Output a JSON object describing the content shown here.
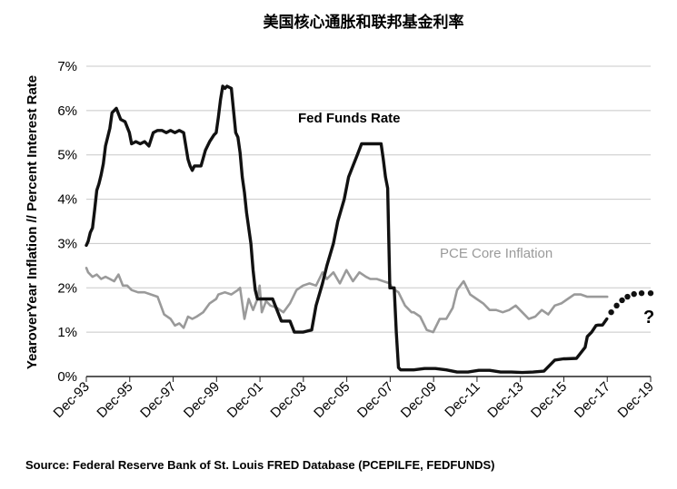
{
  "chart_data": {
    "type": "line",
    "title": "美国核心通胀和联邦基金利率",
    "ylabel": "YearoverYear Inflation // Percent Interest Rate",
    "xlabel": "",
    "ylim": [
      0,
      7
    ],
    "xlim": [
      1993.917,
      2019.917
    ],
    "y_ticks": [
      0,
      1,
      2,
      3,
      4,
      5,
      6,
      7
    ],
    "y_tick_labels": [
      "0%",
      "1%",
      "2%",
      "3%",
      "4%",
      "5%",
      "6%",
      "7%"
    ],
    "x_ticks": [
      1993.917,
      1995.917,
      1997.917,
      1999.917,
      2001.917,
      2003.917,
      2005.917,
      2007.917,
      2009.917,
      2011.917,
      2013.917,
      2015.917,
      2017.917,
      2019.917
    ],
    "x_tick_labels": [
      "Dec-93",
      "Dec-95",
      "Dec-97",
      "Dec-99",
      "Dec-01",
      "Dec-03",
      "Dec-05",
      "Dec-07",
      "Dec-09",
      "Dec-11",
      "Dec-13",
      "Dec-15",
      "Dec-17",
      "Dec-19"
    ],
    "grid": "horizontal",
    "series": [
      {
        "name": "Fed Funds Rate",
        "label": "Fed Funds Rate",
        "color": "#111111",
        "x": [
          1993.917,
          1994.0,
          1994.1,
          1994.2,
          1994.3,
          1994.4,
          1994.5,
          1994.6,
          1994.7,
          1994.8,
          1994.9,
          1995.0,
          1995.1,
          1995.3,
          1995.5,
          1995.7,
          1995.9,
          1996.0,
          1996.2,
          1996.4,
          1996.6,
          1996.8,
          1997.0,
          1997.2,
          1997.4,
          1997.6,
          1997.8,
          1998.0,
          1998.2,
          1998.4,
          1998.6,
          1998.7,
          1998.8,
          1998.9,
          1999.0,
          1999.2,
          1999.4,
          1999.6,
          1999.8,
          1999.9,
          2000.0,
          2000.1,
          2000.2,
          2000.3,
          2000.4,
          2000.6,
          2000.8,
          2000.9,
          2001.0,
          2001.1,
          2001.2,
          2001.3,
          2001.4,
          2001.5,
          2001.6,
          2001.7,
          2001.8,
          2001.9,
          2002.0,
          2002.5,
          2002.9,
          2003.0,
          2003.3,
          2003.5,
          2003.9,
          2004.3,
          2004.5,
          2004.8,
          2005.0,
          2005.3,
          2005.5,
          2005.8,
          2006.0,
          2006.2,
          2006.4,
          2006.6,
          2006.8,
          2007.0,
          2007.3,
          2007.5,
          2007.6,
          2007.7,
          2007.8,
          2007.9,
          2008.0,
          2008.1,
          2008.2,
          2008.3,
          2008.4,
          2008.6,
          2008.8,
          2008.9,
          2009.0,
          2009.5,
          2010.0,
          2010.5,
          2011.0,
          2011.5,
          2012.0,
          2012.5,
          2013.0,
          2013.5,
          2014.0,
          2014.5,
          2015.0,
          2015.5,
          2015.9,
          2016.0,
          2016.5,
          2016.9,
          2017.0,
          2017.2,
          2017.4,
          2017.5,
          2017.7,
          2017.9
        ],
        "values": [
          2.96,
          3.05,
          3.25,
          3.35,
          3.75,
          4.2,
          4.35,
          4.55,
          4.8,
          5.2,
          5.4,
          5.6,
          5.95,
          6.05,
          5.8,
          5.75,
          5.5,
          5.25,
          5.3,
          5.25,
          5.3,
          5.2,
          5.5,
          5.55,
          5.55,
          5.5,
          5.55,
          5.5,
          5.55,
          5.5,
          4.9,
          4.75,
          4.65,
          4.75,
          4.75,
          4.75,
          5.1,
          5.3,
          5.45,
          5.5,
          5.85,
          6.25,
          6.55,
          6.5,
          6.55,
          6.5,
          5.5,
          5.4,
          5.05,
          4.5,
          4.15,
          3.7,
          3.35,
          3.0,
          2.4,
          1.95,
          1.75,
          1.75,
          1.75,
          1.75,
          1.25,
          1.25,
          1.25,
          1.0,
          1.0,
          1.05,
          1.6,
          2.1,
          2.5,
          3.0,
          3.5,
          4.0,
          4.5,
          4.75,
          5.0,
          5.25,
          5.25,
          5.25,
          5.25,
          5.25,
          4.9,
          4.5,
          4.25,
          2.0,
          2.0,
          2.0,
          1.0,
          0.2,
          0.15,
          0.15,
          0.15,
          0.15,
          0.15,
          0.18,
          0.18,
          0.15,
          0.1,
          0.1,
          0.14,
          0.14,
          0.1,
          0.1,
          0.09,
          0.1,
          0.12,
          0.37,
          0.4,
          0.4,
          0.41,
          0.66,
          0.9,
          1.0,
          1.15,
          1.16,
          1.16,
          1.3
        ]
      },
      {
        "name": "PCE Core Inflation",
        "label": "PCE Core Inflation",
        "color": "#9a9a9a",
        "x": [
          1993.917,
          1994.0,
          1994.2,
          1994.4,
          1994.6,
          1994.8,
          1995.0,
          1995.2,
          1995.4,
          1995.6,
          1995.8,
          1996.0,
          1996.3,
          1996.6,
          1996.9,
          1997.2,
          1997.5,
          1997.8,
          1998.0,
          1998.2,
          1998.4,
          1998.6,
          1998.8,
          1999.0,
          1999.3,
          1999.6,
          1999.9,
          2000.0,
          2000.3,
          2000.6,
          2000.9,
          2001.0,
          2001.2,
          2001.4,
          2001.6,
          2001.8,
          2001.9,
          2002.0,
          2002.2,
          2002.4,
          2002.7,
          2003.0,
          2003.3,
          2003.6,
          2003.9,
          2004.2,
          2004.5,
          2004.8,
          2005.0,
          2005.3,
          2005.6,
          2005.9,
          2006.2,
          2006.5,
          2006.8,
          2007.0,
          2007.3,
          2007.6,
          2007.9,
          2008.0,
          2008.3,
          2008.6,
          2008.9,
          2009.0,
          2009.3,
          2009.6,
          2009.9,
          2010.2,
          2010.5,
          2010.8,
          2011.0,
          2011.3,
          2011.6,
          2011.9,
          2012.2,
          2012.5,
          2012.8,
          2013.1,
          2013.4,
          2013.7,
          2014.0,
          2014.3,
          2014.6,
          2014.9,
          2015.2,
          2015.5,
          2015.8,
          2016.1,
          2016.4,
          2016.7,
          2017.0,
          2017.3,
          2017.6,
          2017.917
        ],
        "values": [
          2.45,
          2.35,
          2.25,
          2.3,
          2.2,
          2.25,
          2.2,
          2.15,
          2.3,
          2.05,
          2.05,
          1.95,
          1.9,
          1.9,
          1.85,
          1.8,
          1.4,
          1.3,
          1.15,
          1.2,
          1.1,
          1.35,
          1.3,
          1.35,
          1.45,
          1.65,
          1.75,
          1.85,
          1.9,
          1.85,
          1.95,
          2.0,
          1.3,
          1.75,
          1.5,
          1.75,
          2.05,
          1.45,
          1.7,
          1.6,
          1.55,
          1.45,
          1.65,
          1.95,
          2.05,
          2.1,
          2.05,
          2.35,
          2.2,
          2.35,
          2.1,
          2.4,
          2.15,
          2.35,
          2.25,
          2.2,
          2.2,
          2.15,
          2.1,
          2.0,
          1.9,
          1.6,
          1.45,
          1.45,
          1.35,
          1.05,
          1.0,
          1.3,
          1.3,
          1.55,
          1.95,
          2.15,
          1.85,
          1.75,
          1.65,
          1.5,
          1.5,
          1.45,
          1.5,
          1.6,
          1.45,
          1.3,
          1.35,
          1.5,
          1.4,
          1.6,
          1.65,
          1.75,
          1.85,
          1.85,
          1.8,
          1.8,
          1.8,
          1.8
        ]
      },
      {
        "name": "Fed Funds Rate (projected)",
        "label": "",
        "color": "#111111",
        "style": "dotted",
        "x": [
          2018.1,
          2018.35,
          2018.6,
          2018.85,
          2019.15,
          2019.5,
          2019.917
        ],
        "values": [
          1.45,
          1.6,
          1.72,
          1.8,
          1.86,
          1.88,
          1.88
        ]
      }
    ],
    "annotations": [
      {
        "text": "Fed Funds Rate",
        "target": "Fed Funds Rate series label"
      },
      {
        "text": "PCE Core Inflation",
        "target": "PCE Core Inflation series label"
      },
      {
        "text": "?",
        "target": "future path of Fed Funds Rate"
      }
    ],
    "source": "Source: Federal Reserve Bank of St. Louis FRED Database (PCEPILFE, FEDFUNDS)"
  }
}
